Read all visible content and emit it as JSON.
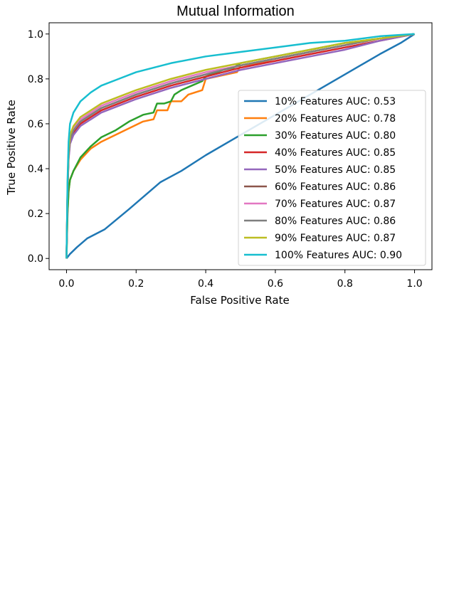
{
  "chart_data": {
    "type": "line",
    "title": "Mutual Information",
    "xlabel": "False Positive Rate",
    "ylabel": "True Positive Rate",
    "xlim": [
      -0.05,
      1.05
    ],
    "ylim": [
      -0.05,
      1.05
    ],
    "x_ticks": [
      "0.0",
      "0.2",
      "0.4",
      "0.6",
      "0.8",
      "1.0"
    ],
    "y_ticks": [
      "0.0",
      "0.2",
      "0.4",
      "0.6",
      "0.8",
      "1.0"
    ],
    "grid": false,
    "legend_position": "lower-right",
    "series": [
      {
        "name": "10% Features AUC: 0.53",
        "color": "#1f77b4",
        "x": [
          0,
          0.01,
          0.03,
          0.06,
          0.11,
          0.18,
          0.27,
          0.33,
          0.4,
          0.5,
          0.6,
          0.7,
          0.8,
          0.9,
          0.96,
          1.0
        ],
        "y": [
          0,
          0.02,
          0.05,
          0.09,
          0.13,
          0.22,
          0.34,
          0.39,
          0.46,
          0.55,
          0.64,
          0.73,
          0.82,
          0.91,
          0.96,
          1.0
        ]
      },
      {
        "name": "20% Features AUC: 0.78",
        "color": "#ff7f0e",
        "x": [
          0,
          0.003,
          0.006,
          0.01,
          0.02,
          0.04,
          0.07,
          0.1,
          0.14,
          0.18,
          0.22,
          0.25,
          0.26,
          0.29,
          0.3,
          0.33,
          0.35,
          0.39,
          0.4,
          0.49,
          0.5,
          0.55,
          0.6,
          0.7,
          0.8,
          0.9,
          1.0
        ],
        "y": [
          0,
          0.2,
          0.3,
          0.35,
          0.39,
          0.44,
          0.49,
          0.52,
          0.55,
          0.58,
          0.61,
          0.62,
          0.66,
          0.66,
          0.7,
          0.7,
          0.73,
          0.75,
          0.8,
          0.83,
          0.86,
          0.87,
          0.89,
          0.92,
          0.95,
          0.98,
          1.0
        ]
      },
      {
        "name": "30% Features AUC: 0.80",
        "color": "#2ca02c",
        "x": [
          0,
          0.003,
          0.006,
          0.01,
          0.02,
          0.04,
          0.07,
          0.1,
          0.14,
          0.18,
          0.22,
          0.25,
          0.26,
          0.28,
          0.3,
          0.31,
          0.33,
          0.36,
          0.39,
          0.4,
          0.45,
          0.48,
          0.5,
          0.6,
          0.7,
          0.8,
          0.9,
          1.0
        ],
        "y": [
          0,
          0.2,
          0.3,
          0.35,
          0.39,
          0.45,
          0.5,
          0.54,
          0.57,
          0.61,
          0.64,
          0.65,
          0.69,
          0.69,
          0.7,
          0.73,
          0.75,
          0.77,
          0.79,
          0.81,
          0.84,
          0.85,
          0.87,
          0.9,
          0.93,
          0.96,
          0.98,
          1.0
        ]
      },
      {
        "name": "40% Features AUC: 0.85",
        "color": "#d62728",
        "x": [
          0,
          0.003,
          0.006,
          0.01,
          0.02,
          0.04,
          0.07,
          0.1,
          0.15,
          0.2,
          0.3,
          0.4,
          0.5,
          0.6,
          0.7,
          0.8,
          0.9,
          1.0
        ],
        "y": [
          0,
          0.3,
          0.45,
          0.52,
          0.56,
          0.6,
          0.63,
          0.66,
          0.69,
          0.72,
          0.77,
          0.81,
          0.85,
          0.88,
          0.91,
          0.94,
          0.97,
          1.0
        ]
      },
      {
        "name": "50% Features AUC: 0.85",
        "color": "#9467bd",
        "x": [
          0,
          0.003,
          0.006,
          0.01,
          0.02,
          0.04,
          0.07,
          0.1,
          0.15,
          0.2,
          0.3,
          0.4,
          0.5,
          0.6,
          0.7,
          0.8,
          0.9,
          1.0
        ],
        "y": [
          0,
          0.3,
          0.44,
          0.51,
          0.55,
          0.59,
          0.62,
          0.65,
          0.68,
          0.71,
          0.76,
          0.8,
          0.84,
          0.87,
          0.9,
          0.93,
          0.97,
          1.0
        ]
      },
      {
        "name": "60% Features AUC: 0.86",
        "color": "#8c564b",
        "x": [
          0,
          0.003,
          0.006,
          0.01,
          0.02,
          0.04,
          0.07,
          0.1,
          0.15,
          0.2,
          0.3,
          0.4,
          0.5,
          0.6,
          0.7,
          0.8,
          0.9,
          1.0
        ],
        "y": [
          0,
          0.31,
          0.46,
          0.53,
          0.57,
          0.61,
          0.64,
          0.67,
          0.7,
          0.73,
          0.78,
          0.82,
          0.86,
          0.89,
          0.92,
          0.95,
          0.98,
          1.0
        ]
      },
      {
        "name": "70% Features AUC: 0.87",
        "color": "#e377c2",
        "x": [
          0,
          0.003,
          0.006,
          0.01,
          0.02,
          0.04,
          0.07,
          0.1,
          0.15,
          0.2,
          0.3,
          0.4,
          0.5,
          0.6,
          0.7,
          0.8,
          0.9,
          1.0
        ],
        "y": [
          0,
          0.32,
          0.47,
          0.54,
          0.58,
          0.62,
          0.65,
          0.68,
          0.71,
          0.74,
          0.79,
          0.83,
          0.86,
          0.89,
          0.92,
          0.95,
          0.98,
          1.0
        ]
      },
      {
        "name": "80% Features AUC: 0.86",
        "color": "#7f7f7f",
        "x": [
          0,
          0.003,
          0.006,
          0.01,
          0.02,
          0.04,
          0.07,
          0.1,
          0.15,
          0.2,
          0.3,
          0.4,
          0.5,
          0.6,
          0.7,
          0.8,
          0.9,
          1.0
        ],
        "y": [
          0,
          0.31,
          0.46,
          0.53,
          0.57,
          0.61,
          0.64,
          0.67,
          0.7,
          0.73,
          0.78,
          0.82,
          0.86,
          0.89,
          0.92,
          0.95,
          0.98,
          1.0
        ]
      },
      {
        "name": "90% Features AUC: 0.87",
        "color": "#bcbd22",
        "x": [
          0,
          0.003,
          0.006,
          0.01,
          0.02,
          0.04,
          0.07,
          0.1,
          0.15,
          0.2,
          0.3,
          0.4,
          0.5,
          0.6,
          0.7,
          0.8,
          0.9,
          1.0
        ],
        "y": [
          0,
          0.33,
          0.48,
          0.55,
          0.59,
          0.63,
          0.66,
          0.69,
          0.72,
          0.75,
          0.8,
          0.84,
          0.87,
          0.9,
          0.93,
          0.96,
          0.98,
          1.0
        ]
      },
      {
        "name": "100% Features AUC: 0.90",
        "color": "#17becf",
        "x": [
          0,
          0.003,
          0.006,
          0.01,
          0.02,
          0.04,
          0.07,
          0.1,
          0.15,
          0.2,
          0.3,
          0.4,
          0.5,
          0.6,
          0.7,
          0.8,
          0.9,
          1.0
        ],
        "y": [
          0,
          0.35,
          0.52,
          0.6,
          0.65,
          0.7,
          0.74,
          0.77,
          0.8,
          0.83,
          0.87,
          0.9,
          0.92,
          0.94,
          0.96,
          0.97,
          0.99,
          1.0
        ]
      }
    ]
  }
}
